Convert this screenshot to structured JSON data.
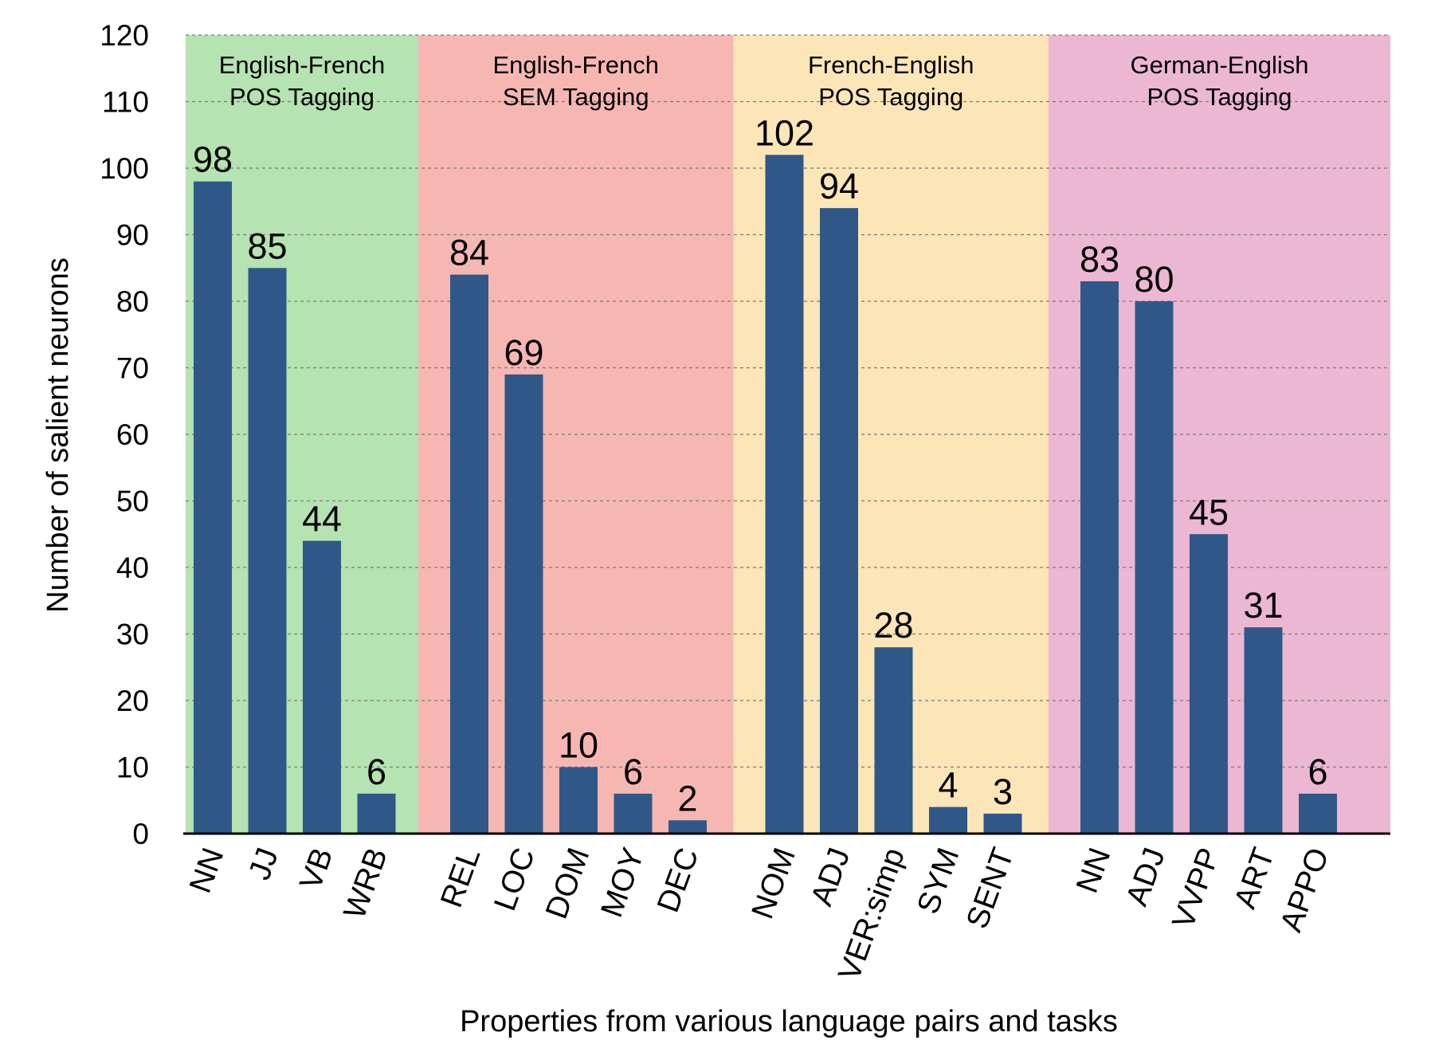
{
  "chart_data": {
    "type": "bar",
    "title": "",
    "xlabel": "Properties from various language pairs and tasks",
    "ylabel": "Number of salient neurons",
    "ylim": [
      0,
      120
    ],
    "yticks": [
      0,
      10,
      20,
      30,
      40,
      50,
      60,
      70,
      80,
      90,
      100,
      110,
      120
    ],
    "grid": "horizontal dashed",
    "bar_color": "#2f5888",
    "groups": [
      {
        "name_line1": "English-French",
        "name_line2": "POS Tagging",
        "color": "#b5e3b1",
        "categories": [
          "NN",
          "JJ",
          "VB",
          "WRB"
        ],
        "values": [
          98,
          85,
          44,
          6
        ]
      },
      {
        "name_line1": "English-French",
        "name_line2": "SEM Tagging",
        "color": "#f6b7b3",
        "categories": [
          "REL",
          "LOC",
          "DOM",
          "MOY",
          "DEC"
        ],
        "values": [
          84,
          69,
          10,
          6,
          2
        ]
      },
      {
        "name_line1": "French-English",
        "name_line2": "POS Tagging",
        "color": "#fce5b7",
        "categories": [
          "NOM",
          "ADJ",
          "VER:simp",
          "SYM",
          "SENT"
        ],
        "values": [
          102,
          94,
          28,
          4,
          3
        ]
      },
      {
        "name_line1": "German-English",
        "name_line2": "POS Tagging",
        "color": "#ecb7d2",
        "categories": [
          "NN",
          "ADJ",
          "VVPP",
          "ART",
          "APPO"
        ],
        "values": [
          83,
          80,
          45,
          31,
          6
        ]
      }
    ]
  }
}
